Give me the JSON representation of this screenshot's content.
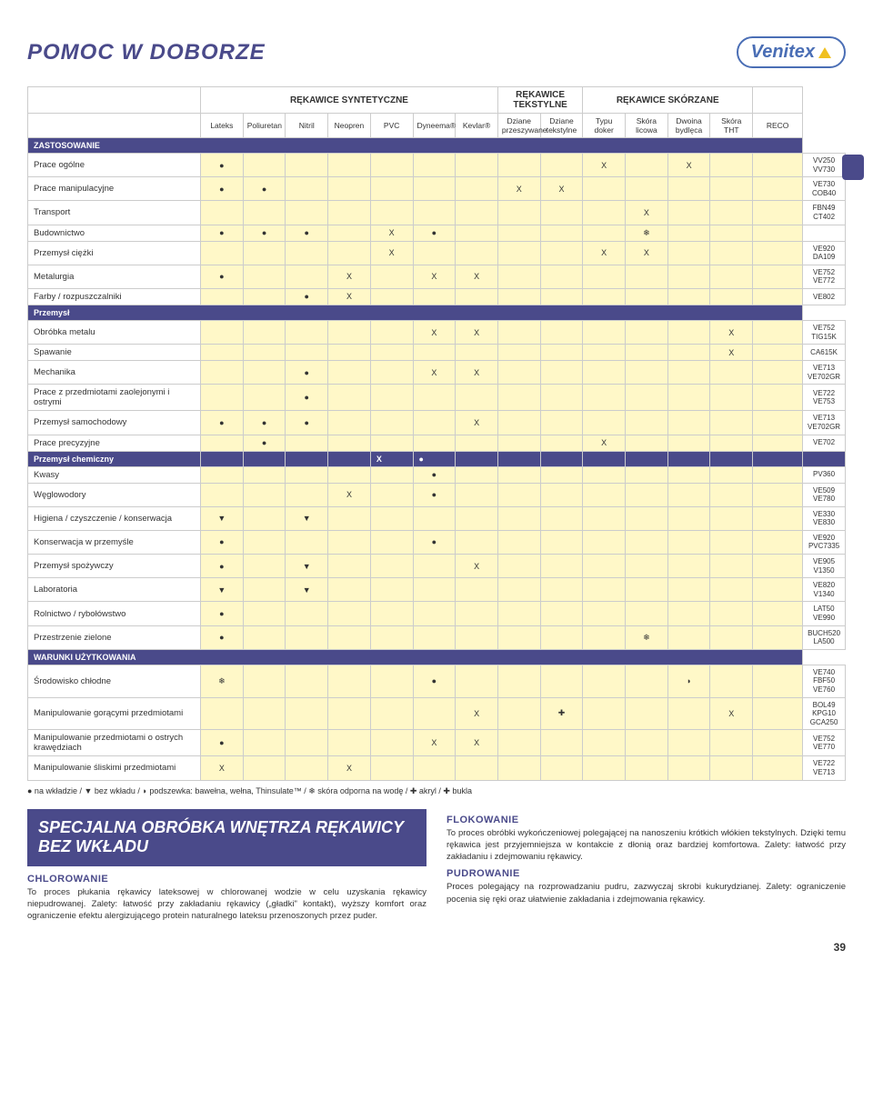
{
  "title": "POMOC W DOBORZE",
  "logo_text": "Venitex",
  "columns": {
    "group1": "RĘKAWICE SYNTETYCZNE",
    "group2": "RĘKAWICE TEKSTYLNE",
    "group3": "RĘKAWICE SKÓRZANE",
    "sub": [
      "Lateks",
      "Poliuretan",
      "Nitril",
      "Neopren",
      "PVC",
      "Dyneema®",
      "Kevlar®",
      "Dziane przeszywane",
      "Dziane tekstylne",
      "Typu doker",
      "Skóra licowa",
      "Dwoina bydlęca",
      "Skóra THT",
      "RECO"
    ]
  },
  "sections": [
    {
      "label": "ZASTOSOWANIE",
      "rows": [
        {
          "label": "Prace ogólne",
          "cells": [
            "●",
            "",
            "",
            "",
            "",
            "",
            "",
            "",
            "",
            "X",
            "",
            "X",
            "",
            ""
          ],
          "reco": "VV250\nVV730"
        },
        {
          "label": "Prace manipulacyjne",
          "cells": [
            "●",
            "●",
            "",
            "",
            "",
            "",
            "",
            "X",
            "X",
            "",
            "",
            "",
            "",
            ""
          ],
          "reco": "VE730\nCOB40"
        },
        {
          "label": "Transport",
          "cells": [
            "",
            "",
            "",
            "",
            "",
            "",
            "",
            "",
            "",
            "",
            "X",
            "",
            "",
            ""
          ],
          "reco": "FBN49\nCT402"
        },
        {
          "label": "Budownictwo",
          "cells": [
            "●",
            "●",
            "●",
            "",
            "X",
            "●",
            "",
            "",
            "",
            "",
            "❄",
            "",
            "",
            ""
          ],
          "reco": ""
        },
        {
          "label": "Przemysł ciężki",
          "cells": [
            "",
            "",
            "",
            "",
            "X",
            "",
            "",
            "",
            "",
            "X",
            "X",
            "",
            "",
            ""
          ],
          "reco": "VE920\nDA109"
        },
        {
          "label": "Metalurgia",
          "cells": [
            "●",
            "",
            "",
            "X",
            "",
            "X",
            "X",
            "",
            "",
            "",
            "",
            "",
            "",
            ""
          ],
          "reco": "VE752\nVE772"
        },
        {
          "label": "Farby / rozpuszczalniki",
          "cells": [
            "",
            "",
            "●",
            "X",
            "",
            "",
            "",
            "",
            "",
            "",
            "",
            "",
            "",
            ""
          ],
          "reco": "VE802"
        }
      ]
    },
    {
      "label": "Przemysł",
      "rows": [
        {
          "label": "Obróbka metalu",
          "cells": [
            "",
            "",
            "",
            "",
            "",
            "X",
            "X",
            "",
            "",
            "",
            "",
            "",
            "X",
            ""
          ],
          "reco": "VE752\nTIG15K"
        },
        {
          "label": "Spawanie",
          "cells": [
            "",
            "",
            "",
            "",
            "",
            "",
            "",
            "",
            "",
            "",
            "",
            "",
            "X",
            ""
          ],
          "reco": "CA615K"
        },
        {
          "label": "Mechanika",
          "cells": [
            "",
            "",
            "●",
            "",
            "",
            "X",
            "X",
            "",
            "",
            "",
            "",
            "",
            "",
            ""
          ],
          "reco": "VE713\nVE702GR"
        },
        {
          "label": "Prace z przedmiotami zaolejonymi i ostrymi",
          "cells": [
            "",
            "",
            "●",
            "",
            "",
            "",
            "",
            "",
            "",
            "",
            "",
            "",
            "",
            ""
          ],
          "reco": "VE722\nVE753"
        },
        {
          "label": "Przemysł samochodowy",
          "cells": [
            "●",
            "●",
            "●",
            "",
            "",
            "",
            "X",
            "",
            "",
            "",
            "",
            "",
            "",
            ""
          ],
          "reco": "VE713\nVE702GR"
        },
        {
          "label": "Prace precyzyjne",
          "cells": [
            "",
            "●",
            "",
            "",
            "",
            "",
            "",
            "",
            "",
            "X",
            "",
            "",
            "",
            ""
          ],
          "reco": "VE702"
        }
      ]
    },
    {
      "label": "Przemysł chemiczny",
      "header_cells": [
        "",
        "",
        "",
        "",
        "X",
        "●",
        "",
        "",
        "",
        "",
        "",
        "",
        "",
        ""
      ],
      "rows": [
        {
          "label": "Kwasy",
          "cells": [
            "",
            "",
            "",
            "",
            "",
            "●",
            "",
            "",
            "",
            "",
            "",
            "",
            "",
            ""
          ],
          "reco": "PV360"
        },
        {
          "label": "Węglowodory",
          "cells": [
            "",
            "",
            "",
            "X",
            "",
            "●",
            "",
            "",
            "",
            "",
            "",
            "",
            "",
            ""
          ],
          "reco": "VE509\nVE780"
        },
        {
          "label": "Higiena / czyszczenie / konserwacja",
          "cells": [
            "▼",
            "",
            "▼",
            "",
            "",
            "",
            "",
            "",
            "",
            "",
            "",
            "",
            "",
            ""
          ],
          "reco": "VE330\nVE830"
        },
        {
          "label": "Konserwacja w przemyśle",
          "cells": [
            "●",
            "",
            "",
            "",
            "",
            "●",
            "",
            "",
            "",
            "",
            "",
            "",
            "",
            ""
          ],
          "reco": "VE920\nPVC7335"
        },
        {
          "label": "Przemysł spożywczy",
          "cells": [
            "●",
            "",
            "▼",
            "",
            "",
            "",
            "X",
            "",
            "",
            "",
            "",
            "",
            "",
            ""
          ],
          "reco": "VE905\nV1350"
        },
        {
          "label": "Laboratoria",
          "cells": [
            "▼",
            "",
            "▼",
            "",
            "",
            "",
            "",
            "",
            "",
            "",
            "",
            "",
            "",
            ""
          ],
          "reco": "VE820\nV1340"
        },
        {
          "label": "Rolnictwo / rybołówstwo",
          "cells": [
            "●",
            "",
            "",
            "",
            "",
            "",
            "",
            "",
            "",
            "",
            "",
            "",
            "",
            ""
          ],
          "reco": "LAT50\nVE990"
        },
        {
          "label": "Przestrzenie zielone",
          "cells": [
            "●",
            "",
            "",
            "",
            "",
            "",
            "",
            "",
            "",
            "",
            "❄",
            "",
            "",
            ""
          ],
          "reco": "BUCH520\nLA500"
        }
      ]
    },
    {
      "label": "WARUNKI UŻYTKOWANIA",
      "rows": [
        {
          "label": "Środowisko chłodne",
          "cells": [
            "❄",
            "",
            "",
            "",
            "",
            "●",
            "",
            "",
            "",
            "",
            "",
            "◗",
            "",
            ""
          ],
          "reco": "VE740\nFBF50\nVE760"
        },
        {
          "label": "Manipulowanie gorącymi przedmiotami",
          "cells": [
            "",
            "",
            "",
            "",
            "",
            "",
            "X",
            "",
            "✚",
            "",
            "",
            "",
            "X",
            ""
          ],
          "reco": "BOL49\nKPG10\nGCA250"
        },
        {
          "label": "Manipulowanie przedmiotami o ostrych krawędziach",
          "cells": [
            "●",
            "",
            "",
            "",
            "",
            "X",
            "X",
            "",
            "",
            "",
            "",
            "",
            "",
            ""
          ],
          "reco": "VE752\nVE770"
        },
        {
          "label": "Manipulowanie śliskimi przedmiotami",
          "cells": [
            "X",
            "",
            "",
            "X",
            "",
            "",
            "",
            "",
            "",
            "",
            "",
            "",
            "",
            ""
          ],
          "reco": "VE722\nVE713"
        }
      ]
    }
  ],
  "legend": "● na wkładzie / ▼ bez wkładu / ◗ podszewka: bawełna, wełna, Thinsulate™ / ❄ skóra odporna na wodę / ✚ akryl / ✚ bukla",
  "banner": "SPECJALNA OBRÓBKA WNĘTRZA RĘKAWICY BEZ WKŁADU",
  "chlor_h": "CHLOROWANIE",
  "chlor_t": "To proces płukania rękawicy lateksowej w chlorowanej wodzie w celu uzyskania rękawicy niepudrowanej.\nZalety: łatwość przy zakładaniu rękawicy („gładki\" kontakt), wyższy komfort oraz ograniczenie efektu alergizującego protein naturalnego lateksu przenoszonych przez puder.",
  "flok_h": "FLOKOWANIE",
  "flok_t": "To proces obróbki wykończeniowej polegającej na nanoszeniu krótkich włókien tekstylnych. Dzięki temu rękawica jest przyjemniejsza w kontakcie z dłonią oraz bardziej komfortowa.\nZalety: łatwość przy zakładaniu i zdejmowaniu rękawicy.",
  "pudr_h": "PUDROWANIE",
  "pudr_t": "Proces polegający na rozprowadzaniu pudru, zazwyczaj skrobi kukurydzianej.\nZalety: ograniczenie pocenia się ręki oraz ułatwienie zakładania i zdejmowania rękawicy.",
  "pagenum": "39"
}
